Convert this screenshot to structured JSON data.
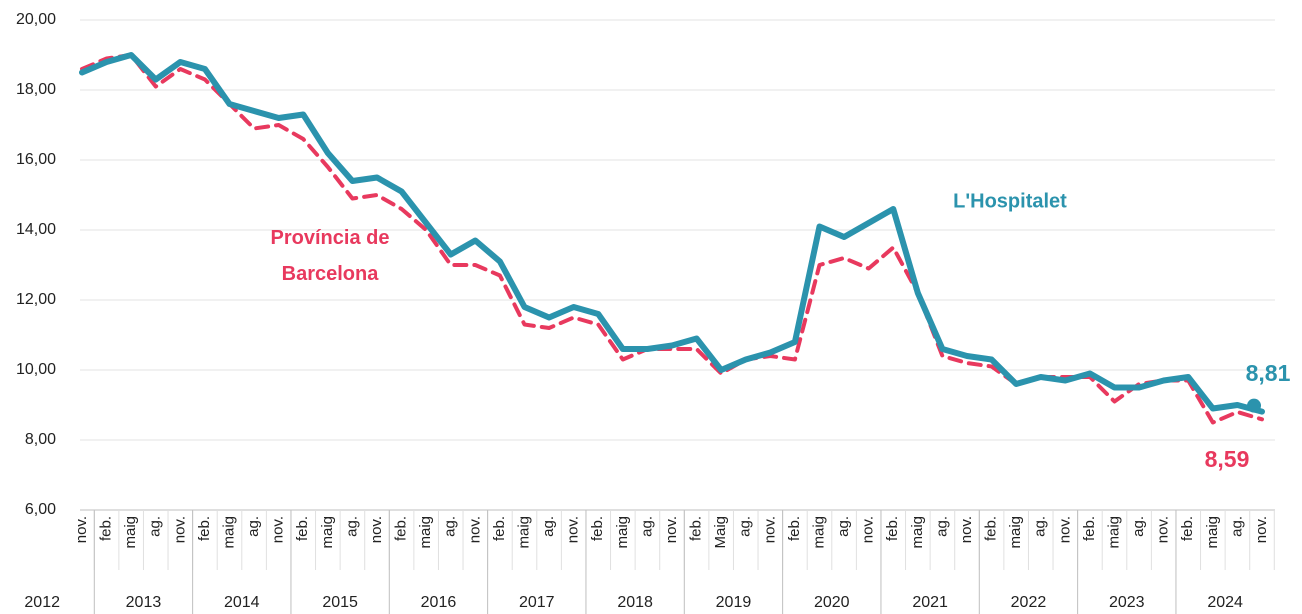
{
  "chart_data": {
    "type": "line",
    "categories": [
      "nov.",
      "feb.",
      "maig",
      "ag.",
      "nov.",
      "feb.",
      "maig",
      "ag.",
      "nov.",
      "feb.",
      "maig",
      "ag.",
      "nov.",
      "feb.",
      "maig",
      "ag.",
      "nov.",
      "feb.",
      "maig",
      "ag.",
      "nov.",
      "feb.",
      "maig",
      "ag.",
      "nov.",
      "feb.",
      "Maig",
      "ag.",
      "nov.",
      "feb.",
      "maig",
      "ag.",
      "nov.",
      "feb.",
      "maig",
      "ag.",
      "nov.",
      "feb.",
      "maig",
      "ag.",
      "nov.",
      "feb.",
      "maig",
      "ag.",
      "nov.",
      "feb.",
      "maig",
      "ag.",
      "nov."
    ],
    "years": [
      "2012",
      "2013",
      "2014",
      "2015",
      "2016",
      "2017",
      "2018",
      "2019",
      "2020",
      "2021",
      "2022",
      "2023",
      "2024"
    ],
    "series": [
      {
        "name": "Província de Barcelona",
        "color": "#e8395e",
        "dashed": true,
        "end_label": "8,59",
        "values": [
          18.6,
          18.9,
          19.0,
          18.1,
          18.6,
          18.3,
          17.6,
          16.9,
          17.0,
          16.6,
          15.8,
          14.9,
          15.0,
          14.6,
          14.0,
          13.0,
          13.0,
          12.7,
          11.3,
          11.2,
          11.5,
          11.3,
          10.3,
          10.6,
          10.6,
          10.6,
          9.9,
          10.3,
          10.4,
          10.3,
          13.0,
          13.2,
          12.9,
          13.5,
          12.2,
          10.4,
          10.2,
          10.1,
          9.6,
          9.8,
          9.8,
          9.8,
          9.1,
          9.6,
          9.7,
          9.7,
          8.5,
          8.8,
          8.59
        ]
      },
      {
        "name": "L'Hospitalet",
        "color": "#2b93ad",
        "dashed": false,
        "end_label": "8,81",
        "values": [
          18.5,
          18.8,
          19.0,
          18.3,
          18.8,
          18.6,
          17.6,
          17.4,
          17.2,
          17.3,
          16.2,
          15.4,
          15.5,
          15.1,
          14.2,
          13.3,
          13.7,
          13.1,
          11.8,
          11.5,
          11.8,
          11.6,
          10.6,
          10.6,
          10.7,
          10.9,
          10.0,
          10.3,
          10.5,
          10.8,
          14.1,
          13.8,
          14.2,
          14.6,
          12.2,
          10.6,
          10.4,
          10.3,
          9.6,
          9.8,
          9.7,
          9.9,
          9.5,
          9.5,
          9.7,
          9.8,
          8.9,
          9.0,
          8.81
        ]
      }
    ],
    "ylim": [
      6,
      20
    ],
    "yticks": [
      {
        "value": 6,
        "label": "6,00"
      },
      {
        "value": 8,
        "label": "8,00"
      },
      {
        "value": 10,
        "label": "10,00"
      },
      {
        "value": 12,
        "label": "12,00"
      },
      {
        "value": 14,
        "label": "14,00"
      },
      {
        "value": 16,
        "label": "16,00"
      },
      {
        "value": 18,
        "label": "18,00"
      },
      {
        "value": 20,
        "label": "20,00"
      }
    ],
    "grid": true
  }
}
